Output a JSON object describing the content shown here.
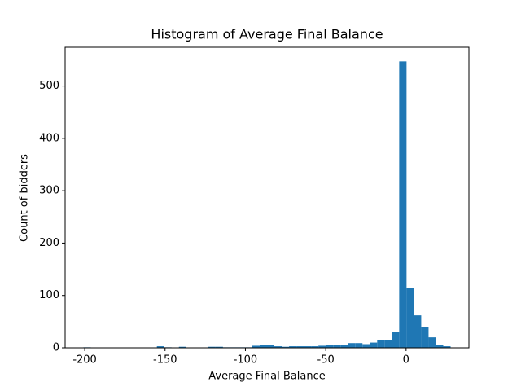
{
  "chart_data": {
    "type": "histogram",
    "title": "Histogram of Average Final Balance",
    "x_label": "Average Final Balance",
    "y_label": "Count of bidders",
    "bins": [
      -200.8,
      -196.23,
      -191.66,
      -187.09,
      -182.52,
      -177.95,
      -173.38,
      -168.81,
      -164.24,
      -159.67,
      -155.1,
      -150.53,
      -145.96,
      -141.39,
      -136.82,
      -132.25,
      -127.68,
      -123.11,
      -118.54,
      -113.97,
      -109.4,
      -104.83,
      -100.26,
      -95.69,
      -91.12,
      -86.55,
      -81.98,
      -77.41,
      -72.84,
      -68.27,
      -63.7,
      -59.13,
      -54.56,
      -49.99,
      -45.42,
      -40.85,
      -36.28,
      -31.71,
      -27.14,
      -22.57,
      -18.0,
      -13.43,
      -8.86,
      -4.29,
      0.28,
      4.85,
      9.42,
      13.99,
      18.56,
      23.13,
      27.7
    ],
    "counts": [
      1,
      0,
      0,
      0,
      0,
      0,
      0,
      0,
      0,
      0,
      3,
      1,
      0,
      2,
      0,
      0,
      0,
      2,
      2,
      1,
      1,
      1,
      1,
      4,
      6,
      6,
      3,
      2,
      3,
      3,
      3,
      3,
      4,
      6,
      6,
      6,
      9,
      9,
      7,
      10,
      14,
      15,
      30,
      547,
      114,
      62,
      39,
      20,
      6,
      3
    ],
    "color": "#1f77b4",
    "xlim": [
      -212.2,
      39.1
    ],
    "xticks": [
      -200,
      -150,
      -100,
      -50,
      0
    ],
    "ylim": [
      0,
      574
    ],
    "yticks": [
      0,
      100,
      200,
      300,
      400,
      500
    ],
    "grid": false
  }
}
